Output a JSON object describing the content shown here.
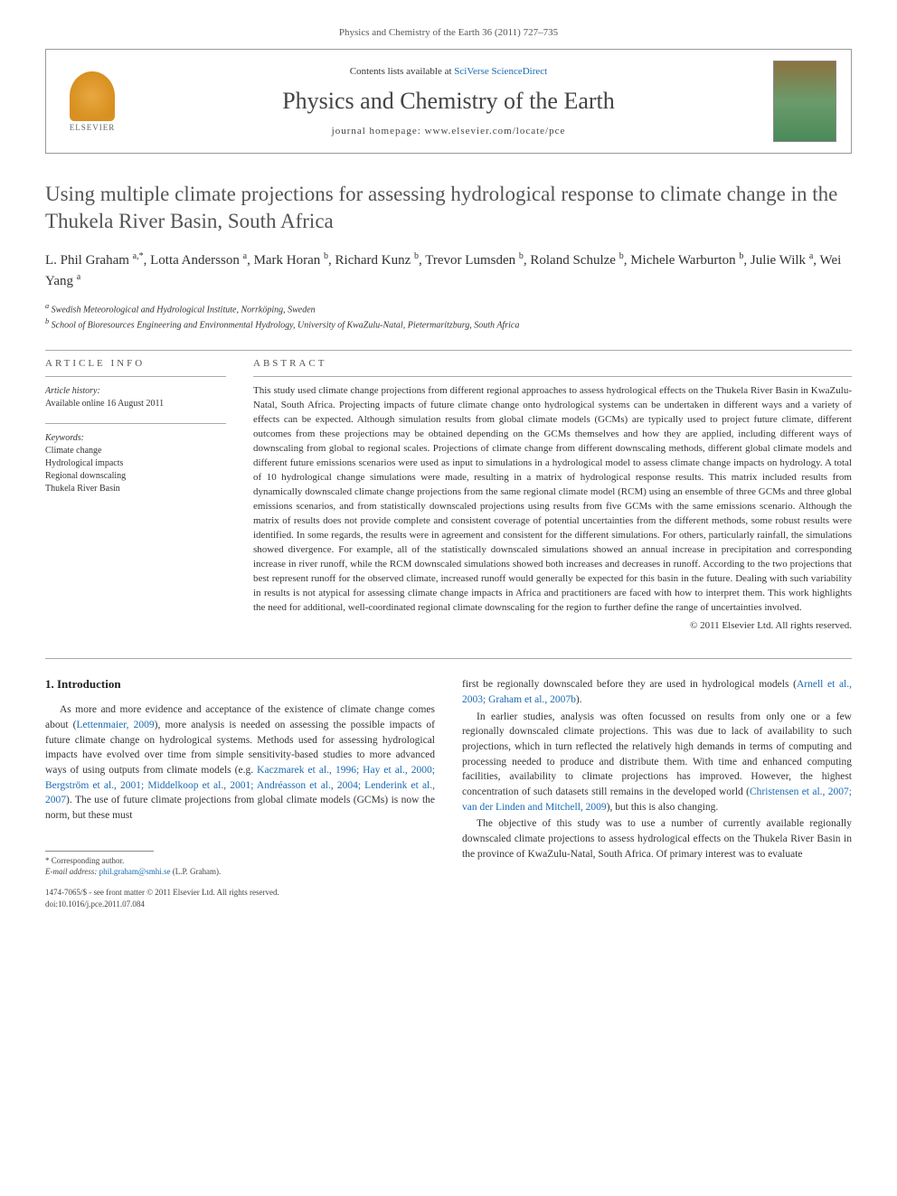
{
  "header": {
    "citation": "Physics and Chemistry of the Earth 36 (2011) 727–735",
    "contents_prefix": "Contents lists available at ",
    "contents_link": "SciVerse ScienceDirect",
    "journal_name": "Physics and Chemistry of the Earth",
    "homepage_prefix": "journal homepage: ",
    "homepage_url": "www.elsevier.com/locate/pce",
    "publisher_label": "ELSEVIER"
  },
  "article": {
    "title": "Using multiple climate projections for assessing hydrological response to climate change in the Thukela River Basin, South Africa",
    "authors_html": "L. Phil Graham <sup>a,*</sup>, Lotta Andersson <sup>a</sup>, Mark Horan <sup>b</sup>, Richard Kunz <sup>b</sup>, Trevor Lumsden <sup>b</sup>, Roland Schulze <sup>b</sup>, Michele Warburton <sup>b</sup>, Julie Wilk <sup>a</sup>, Wei Yang <sup>a</sup>",
    "affiliations": [
      "a Swedish Meteorological and Hydrological Institute, Norrköping, Sweden",
      "b School of Bioresources Engineering and Environmental Hydrology, University of KwaZulu-Natal, Pietermaritzburg, South Africa"
    ]
  },
  "info": {
    "header": "ARTICLE INFO",
    "history_label": "Article history:",
    "history_text": "Available online 16 August 2011",
    "keywords_label": "Keywords:",
    "keywords": [
      "Climate change",
      "Hydrological impacts",
      "Regional downscaling",
      "Thukela River Basin"
    ]
  },
  "abstract": {
    "header": "ABSTRACT",
    "text": "This study used climate change projections from different regional approaches to assess hydrological effects on the Thukela River Basin in KwaZulu-Natal, South Africa. Projecting impacts of future climate change onto hydrological systems can be undertaken in different ways and a variety of effects can be expected. Although simulation results from global climate models (GCMs) are typically used to project future climate, different outcomes from these projections may be obtained depending on the GCMs themselves and how they are applied, including different ways of downscaling from global to regional scales. Projections of climate change from different downscaling methods, different global climate models and different future emissions scenarios were used as input to simulations in a hydrological model to assess climate change impacts on hydrology. A total of 10 hydrological change simulations were made, resulting in a matrix of hydrological response results. This matrix included results from dynamically downscaled climate change projections from the same regional climate model (RCM) using an ensemble of three GCMs and three global emissions scenarios, and from statistically downscaled projections using results from five GCMs with the same emissions scenario. Although the matrix of results does not provide complete and consistent coverage of potential uncertainties from the different methods, some robust results were identified. In some regards, the results were in agreement and consistent for the different simulations. For others, particularly rainfall, the simulations showed divergence. For example, all of the statistically downscaled simulations showed an annual increase in precipitation and corresponding increase in river runoff, while the RCM downscaled simulations showed both increases and decreases in runoff. According to the two projections that best represent runoff for the observed climate, increased runoff would generally be expected for this basin in the future. Dealing with such variability in results is not atypical for assessing climate change impacts in Africa and practitioners are faced with how to interpret them. This work highlights the need for additional, well-coordinated regional climate downscaling for the region to further define the range of uncertainties involved.",
    "copyright": "© 2011 Elsevier Ltd. All rights reserved."
  },
  "intro": {
    "heading": "1. Introduction",
    "col1_p1_pre": "As more and more evidence and acceptance of the existence of climate change comes about (",
    "col1_p1_link1": "Lettenmaier, 2009",
    "col1_p1_mid1": "), more analysis is needed on assessing the possible impacts of future climate change on hydrological systems. Methods used for assessing hydrological impacts have evolved over time from simple sensitivity-based studies to more advanced ways of using outputs from climate models (e.g. ",
    "col1_p1_link2": "Kaczmarek et al., 1996; Hay et al., 2000; Bergström et al., 2001; Middelkoop et al., 2001; Andréasson et al., 2004; Lenderink et al., 2007",
    "col1_p1_post": "). The use of future climate projections from global climate models (GCMs) is now the norm, but these must",
    "col2_p1_pre": "first be regionally downscaled before they are used in hydrological models (",
    "col2_p1_link1": "Arnell et al., 2003; Graham et al., 2007b",
    "col2_p1_post": ").",
    "col2_p2_pre": "In earlier studies, analysis was often focussed on results from only one or a few regionally downscaled climate projections. This was due to lack of availability to such projections, which in turn reflected the relatively high demands in terms of computing and processing needed to produce and distribute them. With time and enhanced computing facilities, availability to climate projections has improved. However, the highest concentration of such datasets still remains in the developed world (",
    "col2_p2_link1": "Christensen et al., 2007; van der Linden and Mitchell, 2009",
    "col2_p2_post": "), but this is also changing.",
    "col2_p3": "The objective of this study was to use a number of currently available regionally downscaled climate projections to assess hydrological effects on the Thukela River Basin in the province of KwaZulu-Natal, South Africa. Of primary interest was to evaluate"
  },
  "footer": {
    "corresponding": "* Corresponding author.",
    "email_label": "E-mail address: ",
    "email": "phil.graham@smhi.se",
    "email_suffix": " (L.P. Graham).",
    "issn_line": "1474-7065/$ - see front matter © 2011 Elsevier Ltd. All rights reserved.",
    "doi_line": "doi:10.1016/j.pce.2011.07.084"
  },
  "colors": {
    "link": "#1a6bb3",
    "text": "#333333",
    "heading": "#555555",
    "border": "#999999"
  }
}
